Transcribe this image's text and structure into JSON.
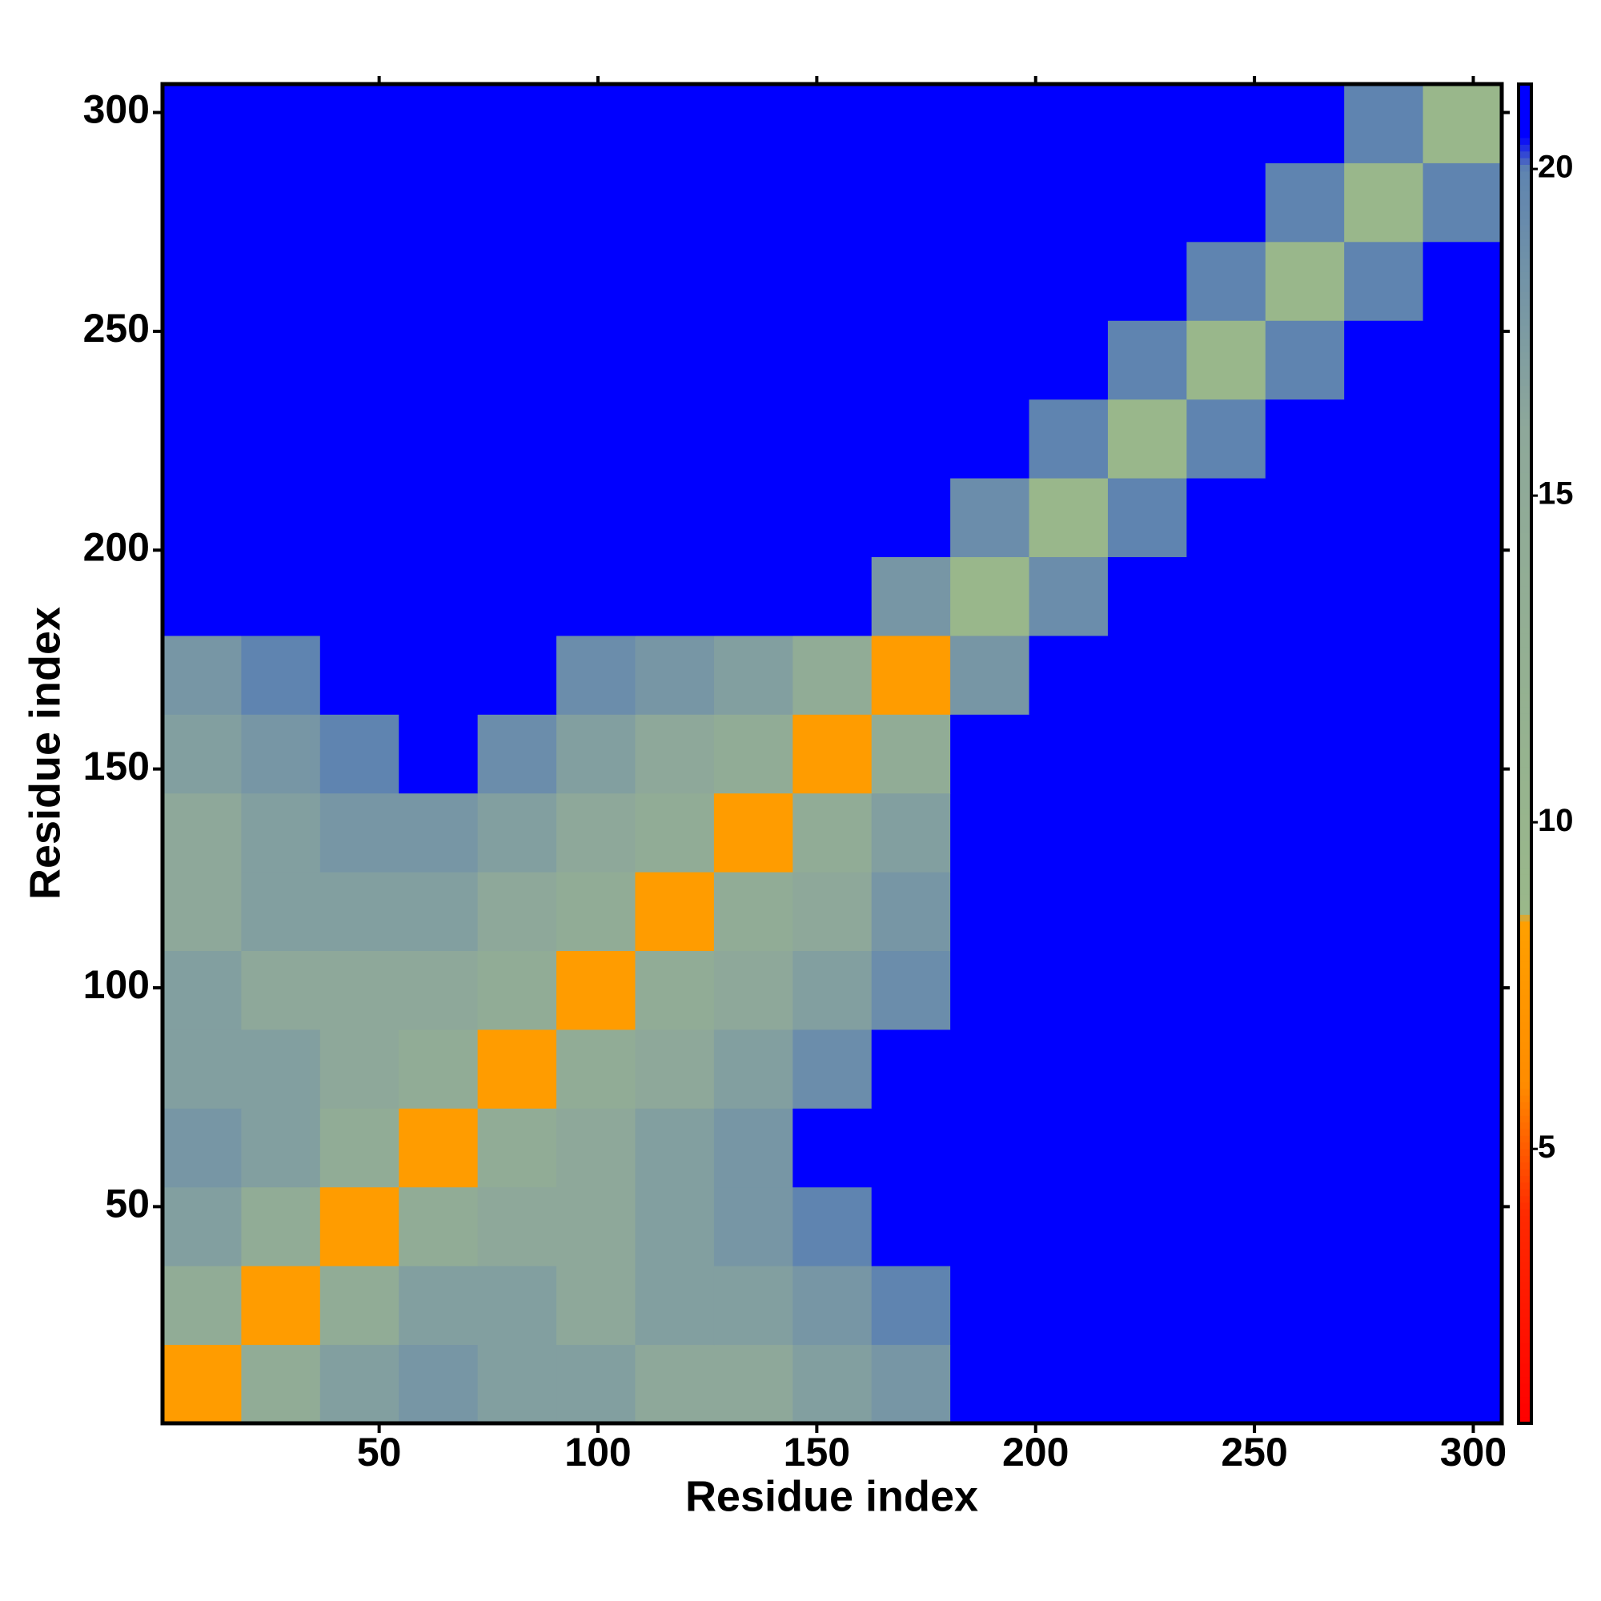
{
  "chart_data": {
    "type": "heatmap",
    "x_label": "Residue index",
    "y_label": "Residue index",
    "xbins": [
      0.5,
      18.5,
      36.5,
      54.5,
      72.5,
      90.5,
      108.5,
      126.5,
      144.5,
      162.5,
      180.5,
      198.5,
      216.5,
      234.5,
      252.5,
      270.5,
      288.5,
      306.5
    ],
    "ybins": [
      0.5,
      18.5,
      36.5,
      54.5,
      72.5,
      90.5,
      108.5,
      126.5,
      144.5,
      162.5,
      180.5,
      198.5,
      216.5,
      234.5,
      252.5,
      270.5,
      288.5,
      306.5
    ],
    "values": [
      [
        8,
        14,
        17,
        18,
        17,
        17,
        16,
        16,
        17,
        18,
        21,
        21,
        21,
        21,
        21,
        21,
        21
      ],
      [
        14,
        8,
        14,
        17,
        17,
        16,
        17,
        17,
        18,
        20,
        21,
        21,
        21,
        21,
        21,
        21,
        21
      ],
      [
        17,
        14,
        8,
        14,
        16,
        16,
        17,
        18,
        20,
        21,
        21,
        21,
        21,
        21,
        21,
        21,
        21
      ],
      [
        18,
        17,
        14,
        8,
        14,
        16,
        17,
        18,
        21,
        21,
        21,
        21,
        21,
        21,
        21,
        21,
        21
      ],
      [
        17,
        17,
        16,
        14,
        8,
        14,
        16,
        17,
        19,
        21,
        21,
        21,
        21,
        21,
        21,
        21,
        21
      ],
      [
        17,
        16,
        16,
        16,
        14,
        8,
        14,
        16,
        17,
        19,
        21,
        21,
        21,
        21,
        21,
        21,
        21
      ],
      [
        16,
        17,
        17,
        17,
        16,
        14,
        8,
        14,
        16,
        18,
        21,
        21,
        21,
        21,
        21,
        21,
        21
      ],
      [
        16,
        17,
        18,
        18,
        17,
        16,
        14,
        8,
        14,
        17,
        21,
        21,
        21,
        21,
        21,
        21,
        21
      ],
      [
        17,
        18,
        20,
        21,
        19,
        17,
        16,
        14,
        8,
        14,
        21,
        21,
        21,
        21,
        21,
        21,
        21
      ],
      [
        18,
        20,
        21,
        21,
        21,
        19,
        18,
        17,
        14,
        8,
        18,
        21,
        21,
        21,
        21,
        21,
        21
      ],
      [
        21,
        21,
        21,
        21,
        21,
        21,
        21,
        21,
        21,
        18,
        9,
        19,
        21,
        21,
        21,
        21,
        21
      ],
      [
        21,
        21,
        21,
        21,
        21,
        21,
        21,
        21,
        21,
        21,
        19,
        9,
        20,
        21,
        21,
        21,
        21
      ],
      [
        21,
        21,
        21,
        21,
        21,
        21,
        21,
        21,
        21,
        21,
        21,
        20,
        9,
        20,
        21,
        21,
        21
      ],
      [
        21,
        21,
        21,
        21,
        21,
        21,
        21,
        21,
        21,
        21,
        21,
        21,
        20,
        9,
        20,
        21,
        21
      ],
      [
        21,
        21,
        21,
        21,
        21,
        21,
        21,
        21,
        21,
        21,
        21,
        21,
        21,
        20,
        9,
        20,
        21
      ],
      [
        21,
        21,
        21,
        21,
        21,
        21,
        21,
        21,
        21,
        21,
        21,
        21,
        21,
        21,
        20,
        9,
        20
      ],
      [
        21,
        21,
        21,
        21,
        21,
        21,
        21,
        21,
        21,
        21,
        21,
        21,
        21,
        21,
        21,
        20,
        9
      ]
    ],
    "xlim": [
      0.5,
      306.5
    ],
    "ylim": [
      0.5,
      306.5
    ],
    "xticks": [
      50,
      100,
      150,
      200,
      250,
      300
    ],
    "yticks": [
      50,
      100,
      150,
      200,
      250,
      300
    ],
    "colorbar": {
      "lim": [
        0.8,
        21.3
      ],
      "ticks": [
        5,
        10,
        15,
        20
      ]
    },
    "colorscale": [
      [
        0.8,
        "#ff0000"
      ],
      [
        4,
        "#ff2a00"
      ],
      [
        6,
        "#ff8c00"
      ],
      [
        8.5,
        "#ffa000"
      ],
      [
        8.6,
        "#9ab88a"
      ],
      [
        16,
        "#8ea89a"
      ],
      [
        20,
        "#5f84b0"
      ],
      [
        20.5,
        "#0000ff"
      ],
      [
        21.3,
        "#0000ff"
      ]
    ]
  }
}
